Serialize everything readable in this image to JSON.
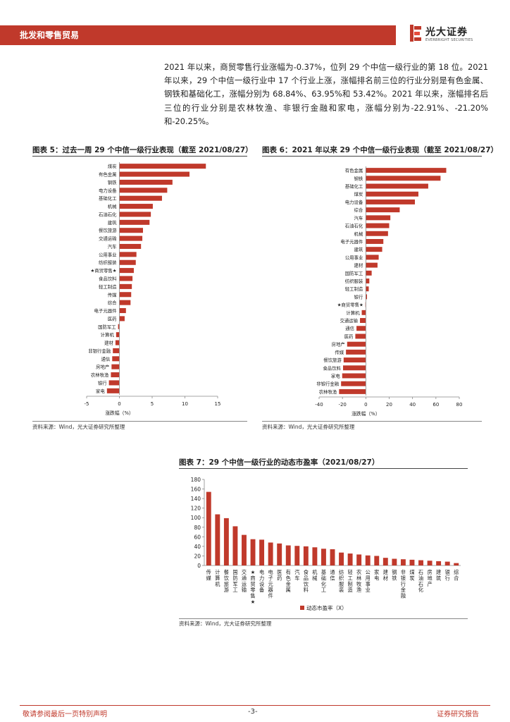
{
  "header": {
    "section": "批发和零售贸易",
    "logo_cn": "光大证券",
    "logo_en": "EVERBRIGHT SECURITIES",
    "accent": "#c0392b"
  },
  "paragraph": "2021 年以来，商贸零售行业涨幅为-0.37%，位列 29 个中信一级行业的第 18 位。2021 年以来，29 个中信一级行业中 17 个行业上涨，涨幅排名前三位的行业分别是有色金属、钢铁和基础化工，涨幅分别为 68.84%、63.95%和 53.42%。2021 年以来，涨幅排名后三位的行业分别是农林牧渔、非银行金融和家电，涨幅分别为-22.91%、-21.20%和-20.25%。",
  "bar_color": "#c0392b",
  "chart_data": [
    {
      "type": "bar",
      "orientation": "horizontal",
      "title": "图表 5：过去一周 29 个中信一级行业表现（截至 2021/08/27）",
      "xlabel": "涨跌幅（%）",
      "xlim": [
        -5,
        15
      ],
      "xticks": [
        "-5",
        "0",
        "5",
        "10",
        "15"
      ],
      "categories": [
        "煤炭",
        "有色金属",
        "钢铁",
        "电力设备",
        "基础化工",
        "机械",
        "石油石化",
        "建筑",
        "餐饮旅游",
        "交通运输",
        "汽车",
        "公用事业",
        "纺织服装",
        "★商贸零售★",
        "食品饮料",
        "轻工制造",
        "传媒",
        "综合",
        "电子元器件",
        "医药",
        "国防军工",
        "计算机",
        "建材",
        "非银行金融",
        "通信",
        "房地产",
        "农林牧渔",
        "银行",
        "家电"
      ],
      "values": [
        13.2,
        10.7,
        8.1,
        7.3,
        6.5,
        5.1,
        4.8,
        4.6,
        3.6,
        3.5,
        3.3,
        2.6,
        2.5,
        2.2,
        2.0,
        1.9,
        1.8,
        1.7,
        1.0,
        0.8,
        -0.2,
        -0.5,
        -0.6,
        -1.0,
        -1.1,
        -1.2,
        -1.3,
        -1.6,
        -1.9
      ],
      "source": "资料来源：Wind，光大证券研究所整理"
    },
    {
      "type": "bar",
      "orientation": "horizontal",
      "title": "图表 6：2021 年以来 29 个中信一级行业表现（截至 2021/08/27）",
      "xlabel": "涨跌幅（%）",
      "xlim": [
        -40,
        80
      ],
      "xticks": [
        "-40",
        "-20",
        "0",
        "20",
        "40",
        "60",
        "80"
      ],
      "categories": [
        "有色金属",
        "钢铁",
        "基础化工",
        "煤炭",
        "电力设备",
        "综合",
        "汽车",
        "石油石化",
        "机械",
        "电子元器件",
        "建筑",
        "公用事业",
        "建材",
        "国防军工",
        "纺织服装",
        "轻工制造",
        "银行",
        "★商贸零售★",
        "计算机",
        "交通运输",
        "通信",
        "医药",
        "房地产",
        "传媒",
        "餐饮旅游",
        "食品饮料",
        "家电",
        "非银行金融",
        "农林牧渔"
      ],
      "values": [
        68.84,
        63.95,
        53.42,
        45.0,
        42.0,
        29.0,
        21.0,
        20.0,
        19.0,
        15.0,
        14.0,
        11.0,
        10.0,
        5.0,
        3.0,
        2.5,
        1.0,
        -0.37,
        -3.5,
        -5.0,
        -8.0,
        -9.0,
        -16.0,
        -17.0,
        -19.0,
        -19.5,
        -20.25,
        -21.2,
        -22.91
      ],
      "source": "资料来源：Wind，光大证券研究所整理"
    },
    {
      "type": "bar",
      "title": "图表 7：29 个中信一级行业的动态市盈率（2021/08/27）",
      "legend": "动态市盈率（X）",
      "ylim": [
        0,
        180
      ],
      "yticks": [
        "0",
        "20",
        "40",
        "60",
        "80",
        "100",
        "120",
        "140",
        "160",
        "180"
      ],
      "categories": [
        "传媒",
        "计算机",
        "餐饮旅游",
        "国防军工",
        "交通运输",
        "★商贸零售★",
        "电力设备",
        "电子元器件",
        "医药",
        "有色金属",
        "汽车",
        "食品饮料",
        "机械",
        "基础化工",
        "通信",
        "纺织服装",
        "轻工制造",
        "农林牧渔",
        "公用事业",
        "家电",
        "建材",
        "钢铁",
        "非银行金融",
        "煤炭",
        "石油石化",
        "房地产",
        "建筑",
        "银行",
        "综合"
      ],
      "values": [
        154,
        107,
        99,
        82,
        64,
        55,
        54,
        48,
        46,
        42,
        41,
        40,
        38,
        35,
        34,
        27,
        25,
        23,
        21,
        20,
        16,
        14,
        13,
        12,
        11,
        10,
        9,
        8,
        5
      ],
      "source": "资料来源：Wind，光大证券研究所整理"
    }
  ],
  "footer": {
    "left": "敬请参阅最后一页特别声明",
    "page": "-3-",
    "right": "证券研究报告"
  }
}
